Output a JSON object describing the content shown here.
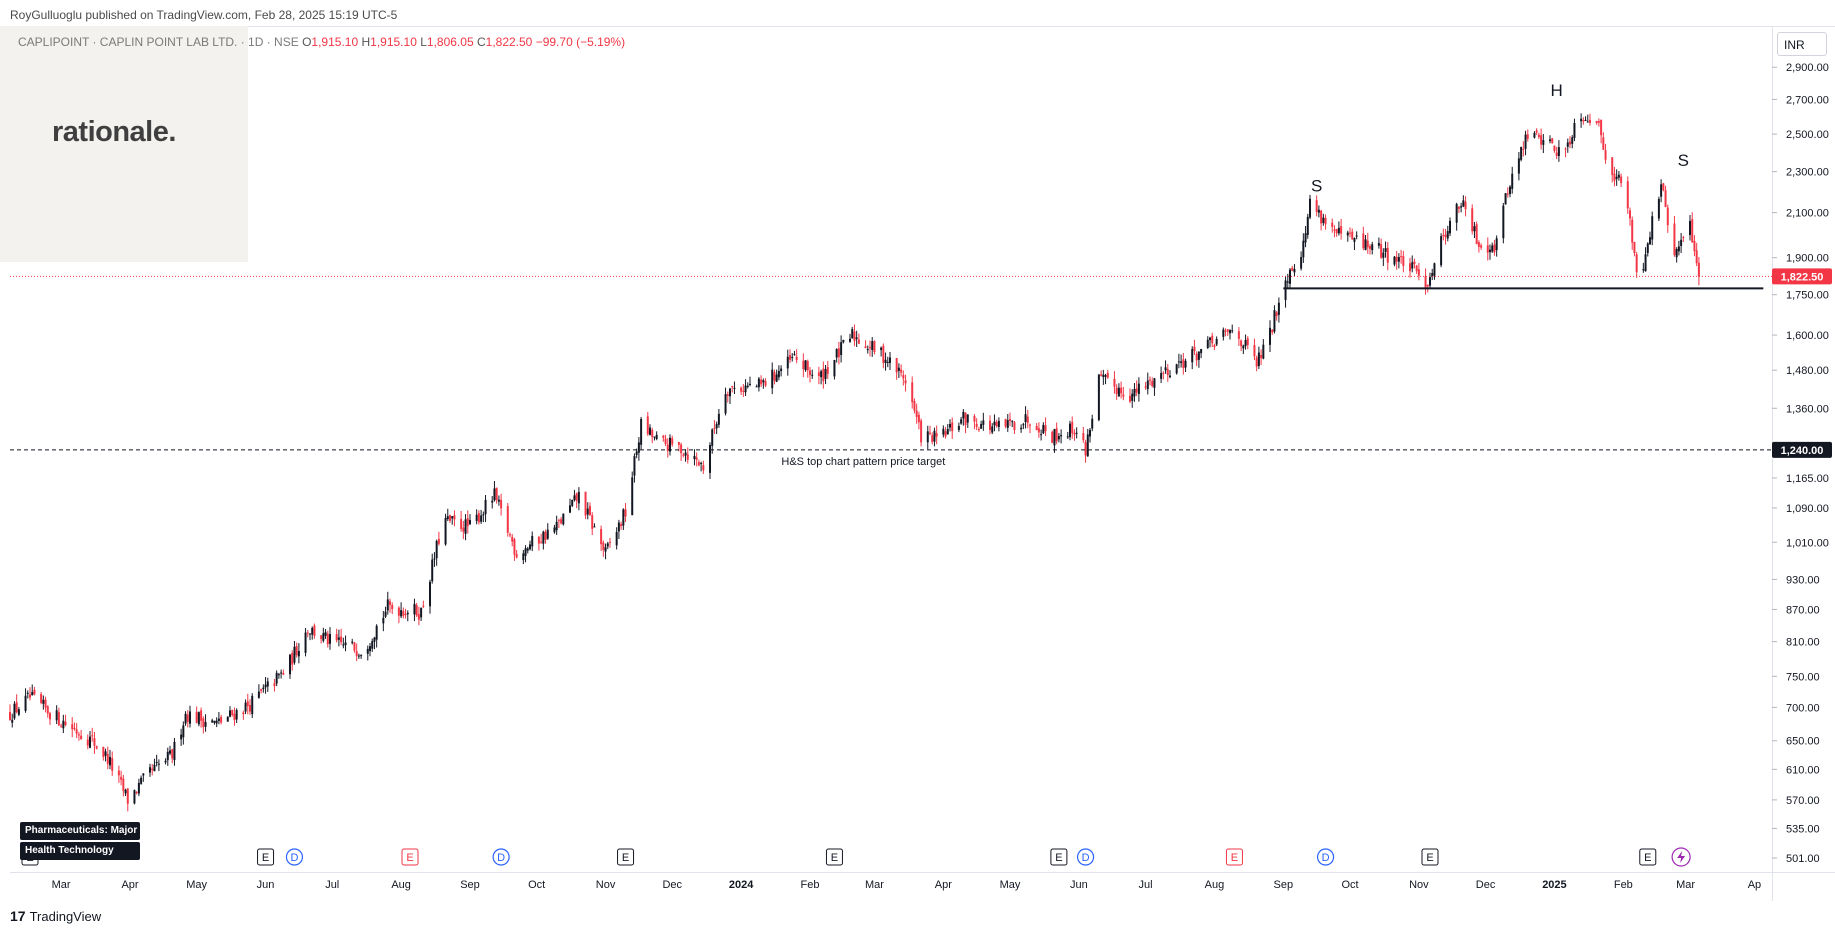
{
  "header": {
    "published": "RoyGulluoglu published on TradingView.com, Feb 28, 2025 15:19 UTC-5"
  },
  "logo": {
    "text": "rationale."
  },
  "legend": {
    "symbol": "CAPLIPOINT · CAPLIN POINT LAB LTD. · 1D · NSE",
    "open_label": "O",
    "open": "1,915.10",
    "high_label": "H",
    "high": "1,915.10",
    "low_label": "L",
    "low": "1,806.05",
    "close_label": "C",
    "close": "1,822.50",
    "change": "−99.70 (−5.19%)"
  },
  "currency": "INR",
  "tags": {
    "sector": "Pharmaceuticals: Major",
    "industry": "Health Technology"
  },
  "footer": {
    "brand": "TradingView",
    "mark": "17"
  },
  "colors": {
    "up": "#131722",
    "down": "#f23645",
    "last_price": "#f23645",
    "target": "#131722"
  },
  "chart_data": {
    "type": "candlestick",
    "title": "",
    "xlabel": "",
    "ylabel": "",
    "scale": "log",
    "ylim": [
      490,
      3150
    ],
    "y_ticks": [
      501,
      535,
      570,
      610,
      650,
      700,
      750,
      810,
      870,
      930,
      1010,
      1090,
      1165,
      1240,
      1360,
      1480,
      1600,
      1750,
      1900,
      2100,
      2300,
      2500,
      2700,
      2900
    ],
    "y_tick_labels": [
      "501.00",
      "535.00",
      "570.00",
      "610.00",
      "650.00",
      "700.00",
      "750.00",
      "810.00",
      "870.00",
      "930.00",
      "1,010.00",
      "1,090.00",
      "1,165.00",
      "1,240.00",
      "1,360.00",
      "1,480.00",
      "1,600.00",
      "1,750.00",
      "1,900.00",
      "2,100.00",
      "2,300.00",
      "2,500.00",
      "2,700.00",
      "2,900.00"
    ],
    "x_range": [
      "2023-02-06",
      "2025-04-08"
    ],
    "x_ticks": [
      {
        "date": "2023-03-01",
        "label": "Mar"
      },
      {
        "date": "2023-04-01",
        "label": "Apr"
      },
      {
        "date": "2023-05-01",
        "label": "May"
      },
      {
        "date": "2023-06-01",
        "label": "Jun"
      },
      {
        "date": "2023-07-01",
        "label": "Jul"
      },
      {
        "date": "2023-08-01",
        "label": "Aug"
      },
      {
        "date": "2023-09-01",
        "label": "Sep"
      },
      {
        "date": "2023-10-01",
        "label": "Oct"
      },
      {
        "date": "2023-11-01",
        "label": "Nov"
      },
      {
        "date": "2023-12-01",
        "label": "Dec"
      },
      {
        "date": "2024-01-01",
        "label": "2024",
        "bold": true
      },
      {
        "date": "2024-02-01",
        "label": "Feb"
      },
      {
        "date": "2024-03-01",
        "label": "Mar"
      },
      {
        "date": "2024-04-01",
        "label": "Apr"
      },
      {
        "date": "2024-05-01",
        "label": "May"
      },
      {
        "date": "2024-06-01",
        "label": "Jun"
      },
      {
        "date": "2024-07-01",
        "label": "Jul"
      },
      {
        "date": "2024-08-01",
        "label": "Aug"
      },
      {
        "date": "2024-09-01",
        "label": "Sep"
      },
      {
        "date": "2024-10-01",
        "label": "Oct"
      },
      {
        "date": "2024-11-01",
        "label": "Nov"
      },
      {
        "date": "2024-12-01",
        "label": "Dec"
      },
      {
        "date": "2025-01-01",
        "label": "2025",
        "bold": true
      },
      {
        "date": "2025-02-01",
        "label": "Feb"
      },
      {
        "date": "2025-03-01",
        "label": "Mar"
      },
      {
        "date": "2025-04-01",
        "label": "Ap"
      }
    ],
    "price_path": [
      [
        "2023-02-06",
        690
      ],
      [
        "2023-02-15",
        715
      ],
      [
        "2023-03-01",
        680
      ],
      [
        "2023-03-15",
        650
      ],
      [
        "2023-03-22",
        625
      ],
      [
        "2023-03-31",
        570
      ],
      [
        "2023-04-10",
        605
      ],
      [
        "2023-04-20",
        630
      ],
      [
        "2023-04-26",
        690
      ],
      [
        "2023-05-10",
        675
      ],
      [
        "2023-05-25",
        705
      ],
      [
        "2023-06-10",
        760
      ],
      [
        "2023-06-20",
        835
      ],
      [
        "2023-06-30",
        810
      ],
      [
        "2023-07-15",
        795
      ],
      [
        "2023-07-26",
        875
      ],
      [
        "2023-08-10",
        865
      ],
      [
        "2023-08-20",
        1060
      ],
      [
        "2023-09-01",
        1045
      ],
      [
        "2023-09-12",
        1120
      ],
      [
        "2023-09-22",
        985
      ],
      [
        "2023-10-10",
        1045
      ],
      [
        "2023-10-20",
        1120
      ],
      [
        "2023-11-01",
        985
      ],
      [
        "2023-11-10",
        1080
      ],
      [
        "2023-11-17",
        1310
      ],
      [
        "2023-11-25",
        1260
      ],
      [
        "2023-12-05",
        1245
      ],
      [
        "2023-12-15",
        1195
      ],
      [
        "2023-12-25",
        1420
      ],
      [
        "2024-01-10",
        1430
      ],
      [
        "2024-01-25",
        1520
      ],
      [
        "2024-02-05",
        1450
      ],
      [
        "2024-02-20",
        1600
      ],
      [
        "2024-03-05",
        1530
      ],
      [
        "2024-03-15",
        1450
      ],
      [
        "2024-03-22",
        1280
      ],
      [
        "2024-03-30",
        1270
      ],
      [
        "2024-04-10",
        1330
      ],
      [
        "2024-04-25",
        1300
      ],
      [
        "2024-05-10",
        1330
      ],
      [
        "2024-05-20",
        1280
      ],
      [
        "2024-05-30",
        1300
      ],
      [
        "2024-06-04",
        1240
      ],
      [
        "2024-06-10",
        1450
      ],
      [
        "2024-06-25",
        1400
      ],
      [
        "2024-07-10",
        1480
      ],
      [
        "2024-07-25",
        1540
      ],
      [
        "2024-08-10",
        1620
      ],
      [
        "2024-08-20",
        1500
      ],
      [
        "2024-08-26",
        1600
      ],
      [
        "2024-09-01",
        1800
      ],
      [
        "2024-09-10",
        1950
      ],
      [
        "2024-09-13",
        2150
      ],
      [
        "2024-09-25",
        2000
      ],
      [
        "2024-10-10",
        1950
      ],
      [
        "2024-10-25",
        1880
      ],
      [
        "2024-11-05",
        1800
      ],
      [
        "2024-11-12",
        2000
      ],
      [
        "2024-11-20",
        2150
      ],
      [
        "2024-11-28",
        1960
      ],
      [
        "2024-12-05",
        1950
      ],
      [
        "2024-12-12",
        2250
      ],
      [
        "2024-12-20",
        2500
      ],
      [
        "2024-12-28",
        2470
      ],
      [
        "2025-01-05",
        2380
      ],
      [
        "2025-01-12",
        2620
      ],
      [
        "2025-01-20",
        2580
      ],
      [
        "2025-01-25",
        2350
      ],
      [
        "2025-02-02",
        2200
      ],
      [
        "2025-02-08",
        1790
      ],
      [
        "2025-02-12",
        1970
      ],
      [
        "2025-02-18",
        2230
      ],
      [
        "2025-02-24",
        1900
      ],
      [
        "2025-03-03",
        2050
      ],
      [
        "2025-03-07",
        1822.5
      ]
    ],
    "last_price": {
      "value": 1822.5,
      "label": "1,822.50"
    },
    "target": {
      "value": 1240,
      "label": "1,240.00",
      "annotation": "H&S top chart pattern price target"
    },
    "neckline": {
      "value": 1775,
      "from": "2024-09-01",
      "to": "2025-04-05"
    },
    "pattern_labels": [
      {
        "text": "S",
        "date": "2024-09-16",
        "price": 2200
      },
      {
        "text": "H",
        "date": "2025-01-02",
        "price": 2720
      },
      {
        "text": "S",
        "date": "2025-02-28",
        "price": 2330
      }
    ],
    "event_markers": [
      {
        "date": "2023-02-15",
        "type": "E"
      },
      {
        "date": "2023-06-01",
        "type": "E"
      },
      {
        "date": "2023-06-14",
        "type": "D"
      },
      {
        "date": "2023-08-05",
        "type": "E",
        "color": "red"
      },
      {
        "date": "2023-09-15",
        "type": "D"
      },
      {
        "date": "2023-11-10",
        "type": "E"
      },
      {
        "date": "2024-02-12",
        "type": "E"
      },
      {
        "date": "2024-05-23",
        "type": "E"
      },
      {
        "date": "2024-06-04",
        "type": "D"
      },
      {
        "date": "2024-08-10",
        "type": "E",
        "color": "red"
      },
      {
        "date": "2024-09-20",
        "type": "D"
      },
      {
        "date": "2024-11-06",
        "type": "E"
      },
      {
        "date": "2025-02-12",
        "type": "E"
      },
      {
        "date": "2025-02-27",
        "type": "bolt"
      }
    ]
  }
}
